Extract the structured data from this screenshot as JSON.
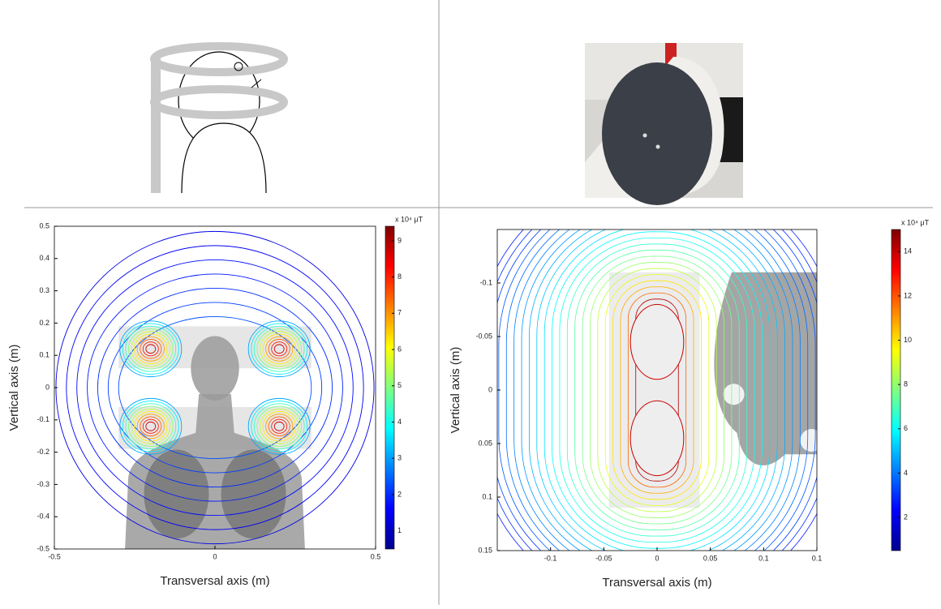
{
  "chart_data": [
    {
      "type": "contour",
      "xlabel": "Transversal axis (m)",
      "ylabel": "Vertical axis (m)",
      "xlim": [
        -0.5,
        0.5
      ],
      "ylim": [
        -0.5,
        0.5
      ],
      "xticks": [
        -0.5,
        0,
        0.5
      ],
      "yticks": [
        -0.5,
        -0.4,
        -0.3,
        -0.2,
        -0.1,
        0,
        0.1,
        0.2,
        0.3,
        0.4,
        0.5
      ],
      "colorbar": {
        "label": "x 10⁴ μT",
        "lim": [
          0.5,
          9.4
        ],
        "ticks": [
          1,
          2,
          3,
          4,
          5,
          6,
          7,
          8,
          9
        ]
      }
    },
    {
      "type": "contour",
      "xlabel": "Transversal axis (m)",
      "ylabel": "Vertical axis (m)",
      "xlim": [
        -0.15,
        0.15
      ],
      "ylim": [
        -0.15,
        0.15
      ],
      "y_inverted": true,
      "xticks": [
        -0.1,
        -0.05,
        0,
        0.05,
        0.1,
        {
          "value": 0.15,
          "label": "0.1"
        }
      ],
      "yticks": [
        -0.1,
        -0.05,
        0,
        0.05,
        0.1,
        0.15
      ],
      "colorbar": {
        "label": "x 10⁴ μT",
        "lim": [
          0.5,
          15
        ],
        "ticks": [
          2,
          4,
          6,
          8,
          10,
          12,
          14
        ]
      }
    }
  ]
}
